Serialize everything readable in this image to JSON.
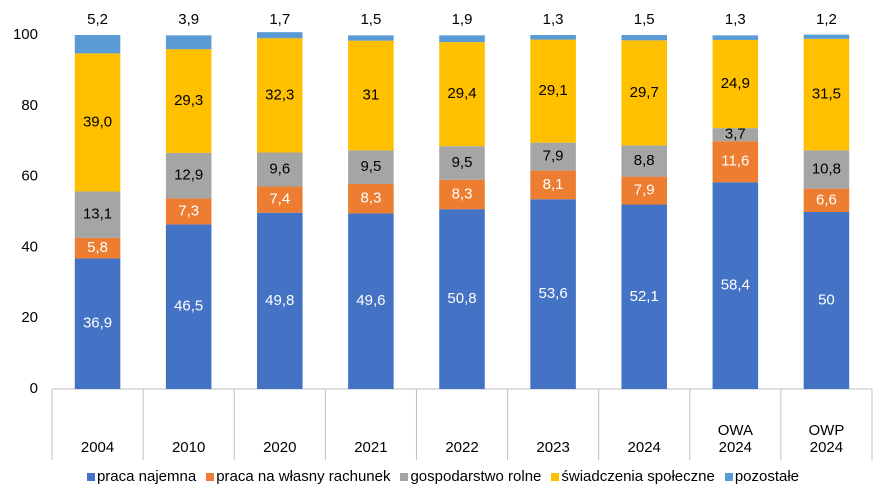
{
  "chart_data": {
    "type": "stacked_bar",
    "categories": [
      "2004",
      "2010",
      "2020",
      "2021",
      "2022",
      "2023",
      "2024",
      "OWA 2024",
      "OWP 2024"
    ],
    "series": [
      {
        "name": "praca najemna",
        "color": "#4472c4",
        "label_color": "#ffffff",
        "values": [
          36.9,
          46.5,
          49.8,
          49.6,
          50.8,
          53.6,
          52.1,
          58.4,
          50
        ],
        "value_labels": [
          "36,9",
          "46,5",
          "49,8",
          "49,6",
          "50,8",
          "53,6",
          "52,1",
          "58,4",
          "50"
        ]
      },
      {
        "name": "praca na własny rachunek",
        "color": "#ed7d31",
        "label_color": "#ffffff",
        "values": [
          5.8,
          7.3,
          7.4,
          8.3,
          8.3,
          8.1,
          7.9,
          11.6,
          6.6
        ],
        "value_labels": [
          "5,8",
          "7,3",
          "7,4",
          "8,3",
          "8,3",
          "8,1",
          "7,9",
          "11,6",
          "6,6"
        ]
      },
      {
        "name": "gospodarstwo rolne",
        "color": "#a5a5a5",
        "label_color": "#000000",
        "values": [
          13.1,
          12.9,
          9.6,
          9.5,
          9.5,
          7.9,
          8.8,
          3.7,
          10.8
        ],
        "value_labels": [
          "13,1",
          "12,9",
          "9,6",
          "9,5",
          "9,5",
          "7,9",
          "8,8",
          "3,7",
          "10,8"
        ]
      },
      {
        "name": "świadczenia społeczne",
        "color": "#ffc000",
        "label_color": "#000000",
        "values": [
          39.0,
          29.3,
          32.3,
          31,
          29.4,
          29.1,
          29.7,
          24.9,
          31.5
        ],
        "value_labels": [
          "39,0",
          "29,3",
          "32,3",
          "31",
          "29,4",
          "29,1",
          "29,7",
          "24,9",
          "31,5"
        ]
      },
      {
        "name": "pozostałe",
        "color": "#5b9bd5",
        "label_color": "#000000",
        "label_position": "above",
        "values": [
          5.2,
          3.9,
          1.7,
          1.5,
          1.9,
          1.3,
          1.5,
          1.3,
          1.2
        ],
        "value_labels": [
          "5,2",
          "3,9",
          "1,7",
          "1,5",
          "1,9",
          "1,3",
          "1,5",
          "1,3",
          "1,2"
        ]
      }
    ],
    "ylim": [
      0,
      100
    ],
    "yticks": [
      0,
      20,
      40,
      60,
      80,
      100
    ],
    "grid": false,
    "legend": "bottom"
  }
}
